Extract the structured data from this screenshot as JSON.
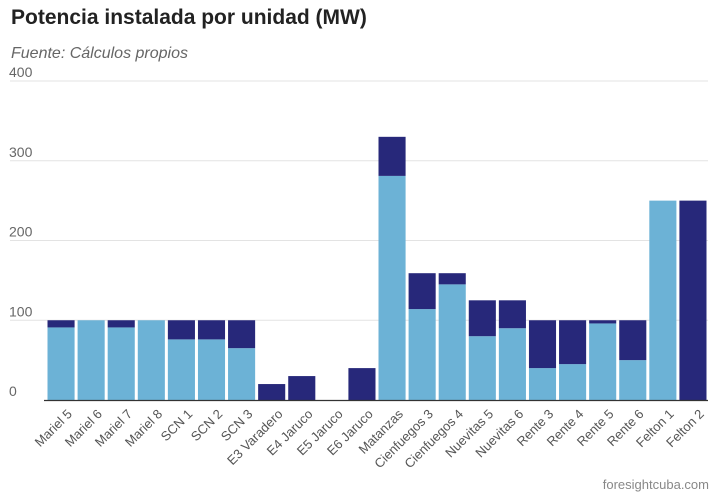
{
  "title": "Potencia instalada por unidad (MW)",
  "subtitle": "Fuente: Cálculos propios",
  "credit": "foresightcuba.com",
  "colors": {
    "light": "#6cb2d6",
    "dark": "#27287a",
    "grid": "#e3e3e3",
    "axis": "#333333"
  },
  "chart_data": {
    "type": "bar",
    "stacked": true,
    "title": "Potencia instalada por unidad (MW)",
    "subtitle": "Fuente: Cálculos propios",
    "xlabel": "",
    "ylabel": "",
    "ylim": [
      0,
      400
    ],
    "yticks": [
      0,
      100,
      200,
      300,
      400
    ],
    "grid": true,
    "categories": [
      "Mariel 5",
      "Mariel 6",
      "Mariel 7",
      "Mariel 8",
      "SCN 1",
      "SCN 2",
      "SCN 3",
      "E3 Varadero",
      "E4 Jaruco",
      "E5 Jaruco",
      "E6 Jaruco",
      "Matanzas",
      "Cienfuegos 3",
      "Cienfuegos 4",
      "Nuevitas 5",
      "Nuevitas 6",
      "Rente 3",
      "Rente 4",
      "Rente 5",
      "Rente 6",
      "Felton 1",
      "Felton 2"
    ],
    "series": [
      {
        "color": "#6cb2d6",
        "values": [
          91,
          100,
          91,
          100,
          76,
          76,
          65,
          0,
          0,
          0,
          0,
          281,
          114,
          145,
          80,
          90,
          40,
          45,
          96,
          50,
          250,
          0
        ]
      },
      {
        "color": "#27287a",
        "values": [
          9,
          0,
          9,
          0,
          24,
          24,
          35,
          20,
          30,
          0,
          40,
          49,
          45,
          14,
          45,
          35,
          60,
          55,
          4,
          50,
          0,
          250
        ]
      }
    ]
  }
}
